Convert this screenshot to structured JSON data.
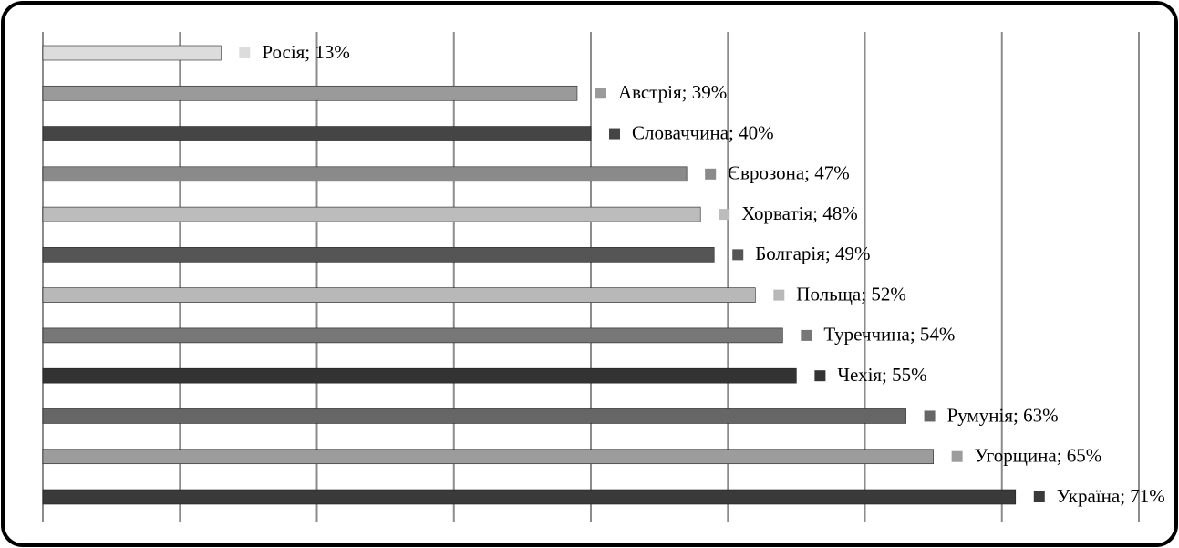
{
  "chart_data": {
    "type": "barh",
    "values": [
      13,
      39,
      40,
      47,
      48,
      49,
      52,
      54,
      55,
      63,
      65,
      71
    ],
    "value_labels": [
      "Росія; 13%",
      "Австрія; 39%",
      "Словаччина; 40%",
      "Єврозона; 47%",
      "Хорватія; 48%",
      "Болгарія; 49%",
      "Польща; 52%",
      "Туреччина; 54%",
      "Чехія; 55%",
      "Румунія; 63%",
      "Угорщина; 65%",
      "Україна; 71%"
    ],
    "colors": [
      "#dcdcdc",
      "#9a9a9a",
      "#454545",
      "#8a8a8a",
      "#bcbcbc",
      "#555555",
      "#b8b8b8",
      "#777777",
      "#333333",
      "#666666",
      "#9c9c9c",
      "#3a3a3a"
    ],
    "xlim": [
      0,
      80
    ],
    "xticks": [
      0,
      10,
      20,
      30,
      40,
      50,
      60,
      70,
      80
    ],
    "grid": true
  }
}
